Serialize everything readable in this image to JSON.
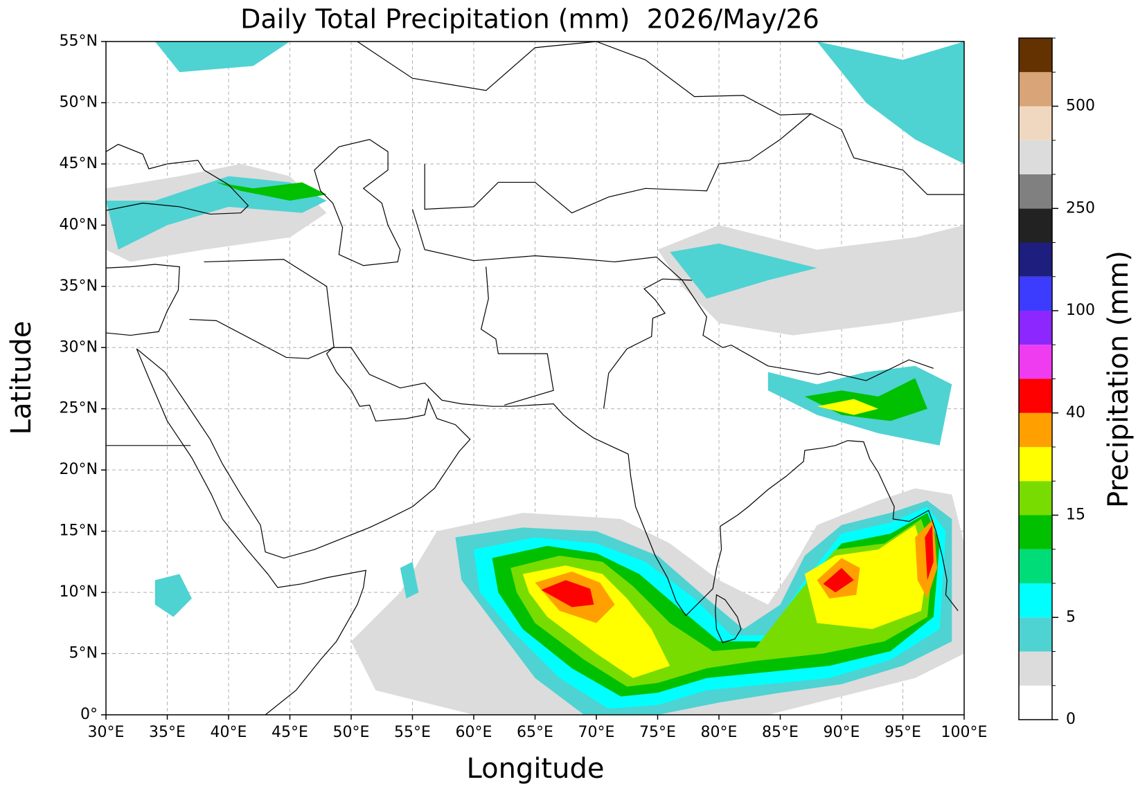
{
  "title": "Daily Total Precipitation (mm)  2026/May/26",
  "map": {
    "xlabel": "Longitude",
    "ylabel": "Latitude",
    "xlim": [
      30,
      100
    ],
    "ylim": [
      0,
      55
    ],
    "grid": true,
    "xticks": [
      {
        "value": 30,
        "label": "30°E"
      },
      {
        "value": 35,
        "label": "35°E"
      },
      {
        "value": 40,
        "label": "40°E"
      },
      {
        "value": 45,
        "label": "45°E"
      },
      {
        "value": 50,
        "label": "50°E"
      },
      {
        "value": 55,
        "label": "55°E"
      },
      {
        "value": 60,
        "label": "60°E"
      },
      {
        "value": 65,
        "label": "65°E"
      },
      {
        "value": 70,
        "label": "70°E"
      },
      {
        "value": 75,
        "label": "75°E"
      },
      {
        "value": 80,
        "label": "80°E"
      },
      {
        "value": 85,
        "label": "85°E"
      },
      {
        "value": 90,
        "label": "90°E"
      },
      {
        "value": 95,
        "label": "95°E"
      },
      {
        "value": 100,
        "label": "100°E"
      }
    ],
    "yticks": [
      {
        "value": 0,
        "label": "0°"
      },
      {
        "value": 5,
        "label": "5°N"
      },
      {
        "value": 10,
        "label": "10°N"
      },
      {
        "value": 15,
        "label": "15°N"
      },
      {
        "value": 20,
        "label": "20°N"
      },
      {
        "value": 25,
        "label": "25°N"
      },
      {
        "value": 30,
        "label": "30°N"
      },
      {
        "value": 35,
        "label": "35°N"
      },
      {
        "value": 40,
        "label": "40°N"
      },
      {
        "value": 45,
        "label": "45°N"
      },
      {
        "value": 50,
        "label": "50°N"
      },
      {
        "value": 55,
        "label": "55°N"
      }
    ]
  },
  "colorbar": {
    "label": "Precipitation (mm)",
    "levels": [
      0,
      null,
      null,
      5,
      null,
      null,
      15,
      null,
      null,
      40,
      null,
      null,
      100,
      null,
      null,
      250,
      null,
      null,
      500,
      null,
      null
    ],
    "colors": [
      "#ffffff",
      "#dcdcdc",
      "#4fd2d2",
      "#00ffff",
      "#00dc78",
      "#00c000",
      "#78dc00",
      "#ffff00",
      "#ffa000",
      "#ff0000",
      "#f03cf0",
      "#8c28ff",
      "#3c3cff",
      "#1e1e7e",
      "#222222",
      "#808080",
      "#dcdcdc",
      "#f0d8c0",
      "#d8a478",
      "#643200"
    ]
  }
}
